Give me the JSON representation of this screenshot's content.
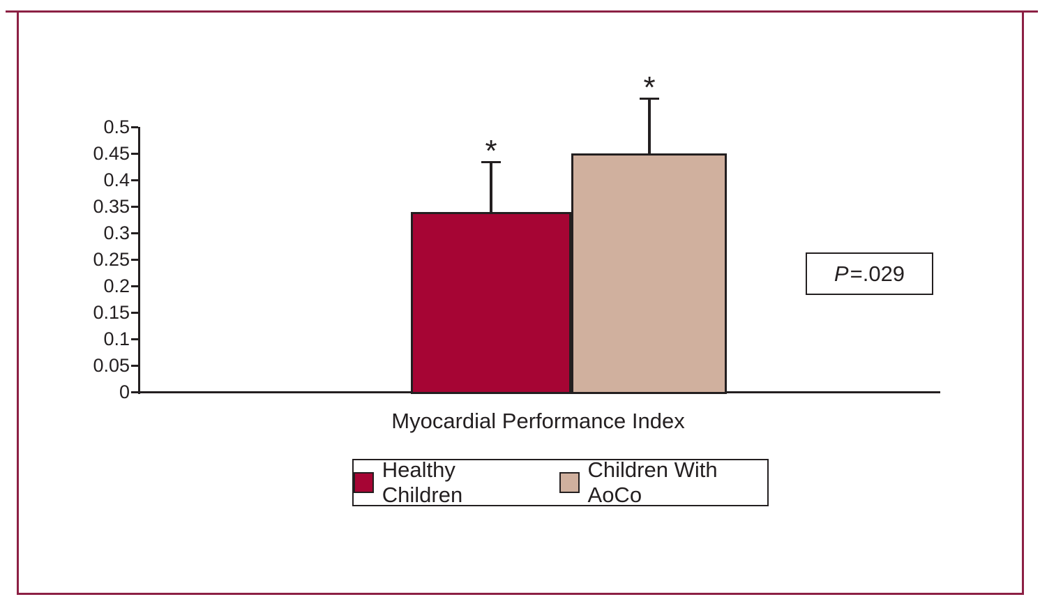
{
  "figure": {
    "frame_color": "#8C2044",
    "axis_color": "#231F20",
    "background": "#FFFFFF"
  },
  "chart_data": {
    "type": "bar",
    "title": "",
    "xlabel": "Myocardial Performance Index",
    "ylabel": "",
    "ylim": [
      0,
      0.5
    ],
    "yticks": [
      0,
      0.05,
      0.1,
      0.15,
      0.2,
      0.25,
      0.3,
      0.35,
      0.4,
      0.45,
      0.5
    ],
    "ytick_labels": [
      "0",
      "0.05",
      "0.1",
      "0.15",
      "0.2",
      "0.25",
      "0.3",
      "0.35",
      "0.4",
      "0.45",
      "0.5"
    ],
    "categories": [
      "Myocardial Performance Index"
    ],
    "series": [
      {
        "name": "Healthy Children",
        "values": [
          0.34
        ],
        "error_upper": [
          0.095
        ],
        "color": "#A60534",
        "significance_marker": "*"
      },
      {
        "name": "Children With AoCo",
        "values": [
          0.45
        ],
        "error_upper": [
          0.105
        ],
        "color": "#D0B09E",
        "significance_marker": "*"
      }
    ],
    "grid": false,
    "legend_position": "bottom-center",
    "annotation": {
      "p_prefix": "P",
      "p_value": "=.029"
    }
  }
}
